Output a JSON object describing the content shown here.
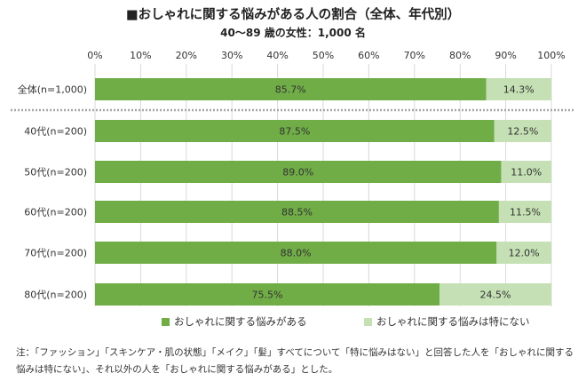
{
  "colors": {
    "concern": "#70ad47",
    "no_concern": "#c5e0b4",
    "divider": "#a6a6a6",
    "grid": "#d9d9d9"
  },
  "note": {
    "line1": "注：「ファッション」「スキンケア・肌の状態」「メイク」「髪」すべてについて「特に悩みはない」と回答した人を「おしゃれに関する",
    "line2": "悩みは特にない」、それ以外の人を「おしゃれに関する悩みがある」とした。"
  },
  "chart_data": {
    "type": "bar",
    "orientation": "horizontal",
    "stacked": true,
    "title": "■おしゃれに関する悩みがある人の割合（全体、年代別）",
    "subtitle": "40～89 歳の女性：1,000 名",
    "categories": [
      "全体(n=1,000)",
      "40代(n=200)",
      "50代(n=200)",
      "60代(n=200)",
      "70代(n=200)",
      "80代(n=200)"
    ],
    "x_ticks": [
      "0%",
      "10%",
      "20%",
      "30%",
      "40%",
      "50%",
      "60%",
      "70%",
      "80%",
      "90%",
      "100%"
    ],
    "xlim": [
      0,
      100
    ],
    "grid": true,
    "legend_position": "bottom",
    "series": [
      {
        "name": "おしゃれに関する悩みがある",
        "values": [
          85.7,
          87.5,
          89.0,
          88.5,
          88.0,
          75.5
        ],
        "labels": [
          "85.7%",
          "87.5%",
          "89.0%",
          "88.5%",
          "88.0%",
          "75.5%"
        ]
      },
      {
        "name": "おしゃれに関する悩みは特にない",
        "values": [
          14.3,
          12.5,
          11.0,
          11.5,
          12.0,
          24.5
        ],
        "labels": [
          "14.3%",
          "12.5%",
          "11.0%",
          "11.5%",
          "12.0%",
          "24.5%"
        ]
      }
    ]
  }
}
